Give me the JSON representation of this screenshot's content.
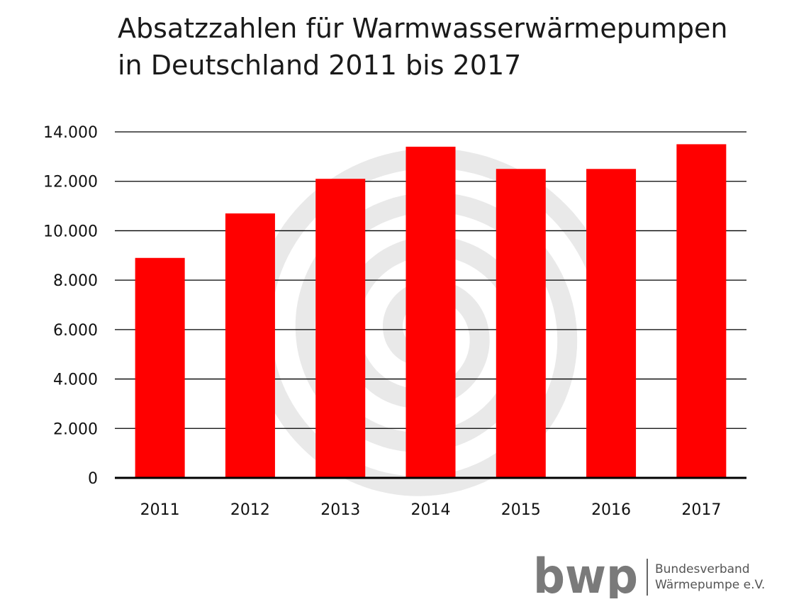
{
  "title_lines": [
    "Absatzzahlen für Warmwasserwärmepumpen",
    "in Deutschland 2011 bis 2017"
  ],
  "colors": {
    "bar": "#ff0000",
    "grid": "#000000",
    "spiral": "#e9e9e9"
  },
  "chart_data": {
    "type": "bar",
    "title": "Absatzzahlen für Warmwasserwärmepumpen in Deutschland 2011 bis 2017",
    "xlabel": "",
    "ylabel": "",
    "categories": [
      "2011",
      "2012",
      "2013",
      "2014",
      "2015",
      "2016",
      "2017"
    ],
    "values": [
      8900,
      10700,
      12100,
      13400,
      12500,
      12500,
      13500
    ],
    "ylim": [
      0,
      14000
    ],
    "yticks": [
      0,
      2000,
      4000,
      6000,
      8000,
      10000,
      12000,
      14000
    ],
    "ytick_labels": [
      "0",
      "2.000",
      "4.000",
      "6.000",
      "8.000",
      "10.000",
      "12.000",
      "14.000"
    ],
    "grid": true,
    "legend": "none"
  },
  "logo": {
    "mark_text": "bwp",
    "org_lines": [
      "Bundesverband",
      "Wärmepumpe e.V."
    ]
  }
}
